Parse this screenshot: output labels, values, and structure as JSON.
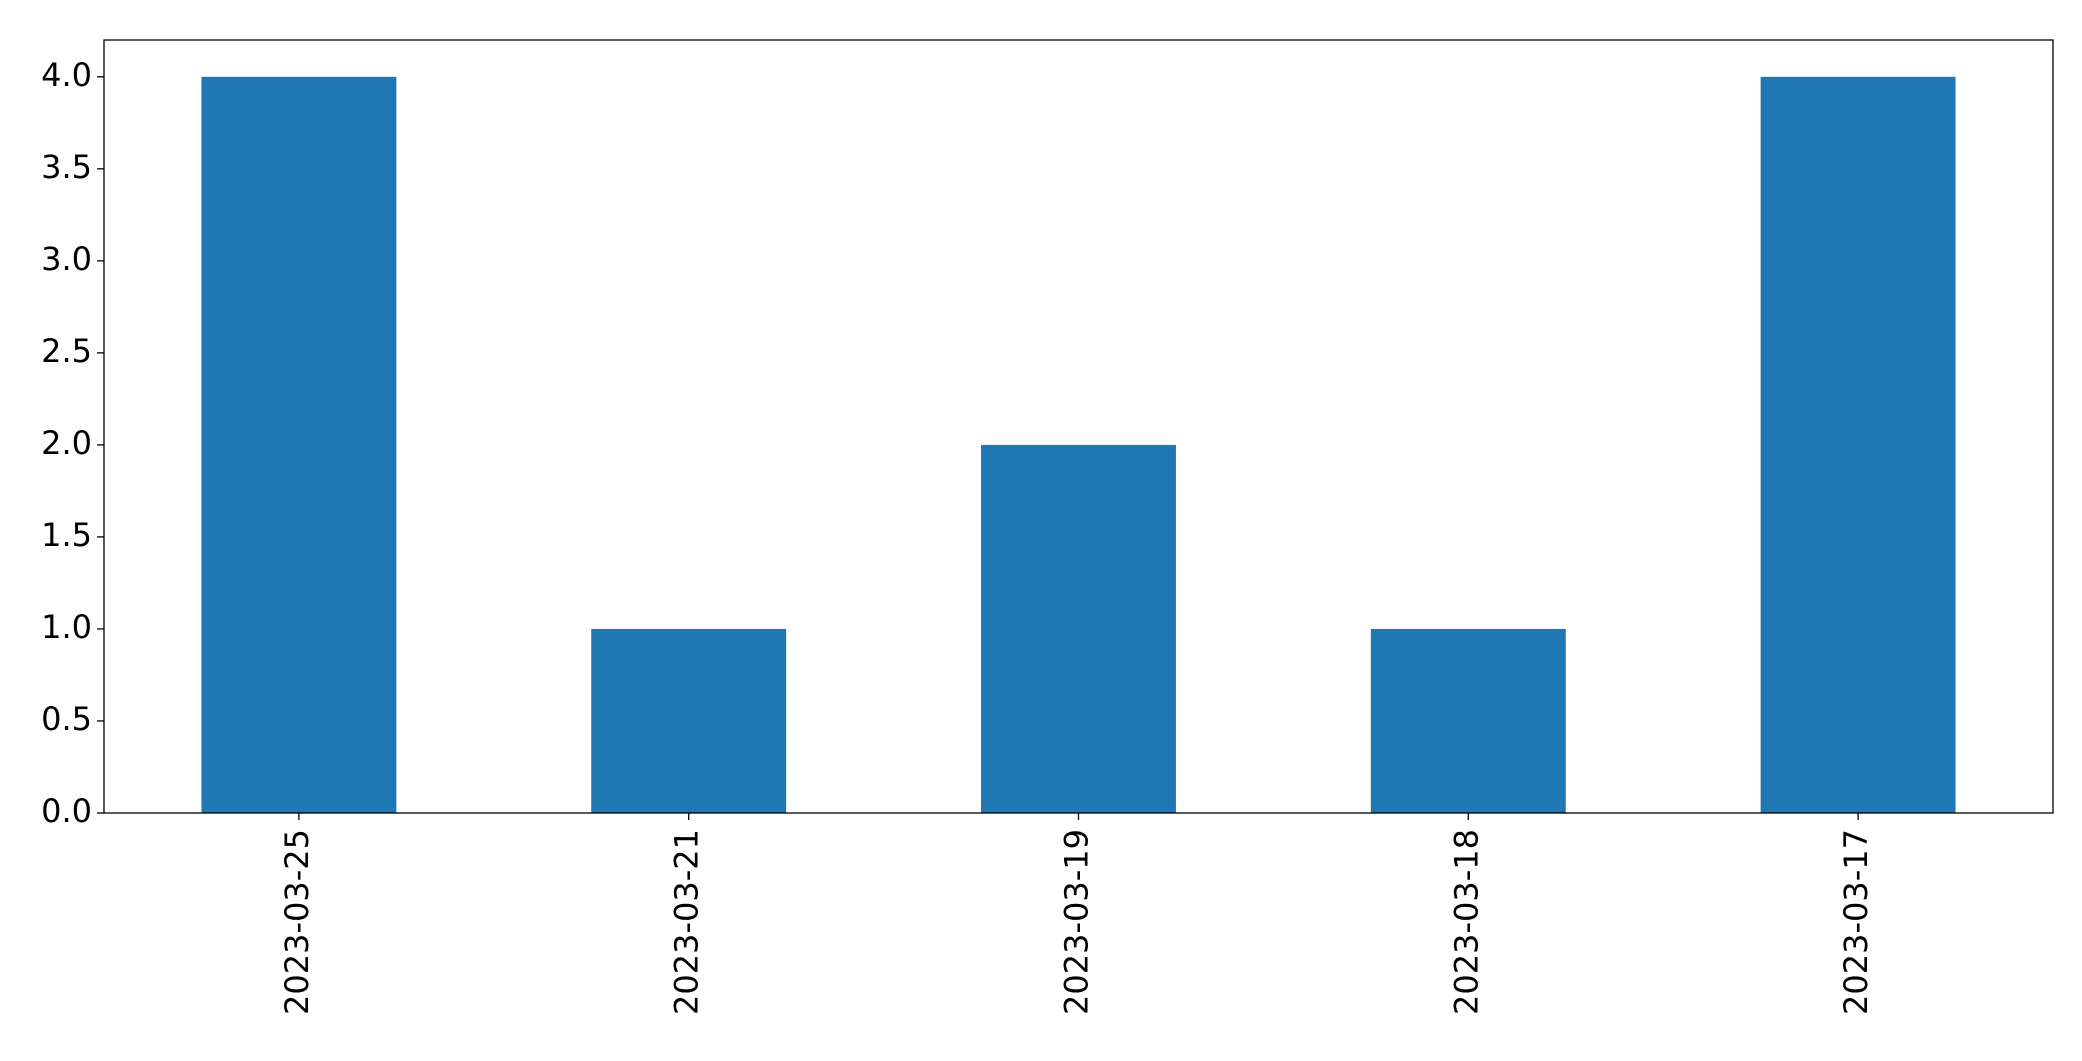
{
  "chart_data": {
    "type": "bar",
    "categories": [
      "2023-03-25",
      "2023-03-21",
      "2023-03-19",
      "2023-03-18",
      "2023-03-17"
    ],
    "values": [
      4,
      1,
      2,
      1,
      4
    ],
    "color": "#1f77b4",
    "ylim": [
      0,
      4.2
    ],
    "yticks": [
      {
        "value": 0,
        "label": "0.0"
      },
      0.5,
      {
        "value": 1,
        "label": "1.0"
      },
      1.5,
      {
        "value": 2,
        "label": "2.0"
      },
      2.5,
      {
        "value": 3,
        "label": "3.0"
      },
      3.5,
      {
        "value": 4,
        "label": "4.0"
      }
    ],
    "grid": false
  }
}
